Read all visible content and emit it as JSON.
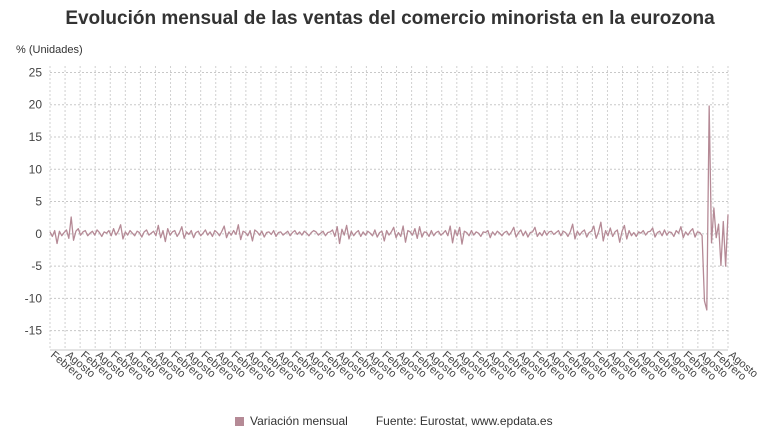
{
  "chart_data": {
    "type": "line",
    "title": "Evolución mensual de las ventas del comercio minorista en la eurozona",
    "ylabel": "% (Unidades)",
    "ylim": [
      -18,
      26
    ],
    "y_ticks": [
      25,
      20,
      15,
      10,
      5,
      0,
      -5,
      -10,
      -15
    ],
    "x_tick_labels": [
      "Febrero",
      "Agosto",
      "Febrero",
      "Agosto",
      "Febrero",
      "Agosto",
      "Febrero",
      "Agosto",
      "Febrero",
      "Agosto",
      "Febrero",
      "Agosto",
      "Febrero",
      "Agosto",
      "Febrero",
      "Agosto",
      "Febrero",
      "Agosto",
      "Febrero",
      "Agosto",
      "Febrero",
      "Agosto",
      "Febrero",
      "Agosto",
      "Febrero",
      "Agosto",
      "Febrero",
      "Agosto",
      "Febrero",
      "Agosto",
      "Febrero",
      "Agosto",
      "Febrero",
      "Agosto",
      "Febrero",
      "Agosto",
      "Febrero",
      "Agosto",
      "Febrero",
      "Agosto",
      "Febrero",
      "Agosto",
      "Febrero",
      "Agosto",
      "Febrero",
      "Agosto"
    ],
    "grid": true,
    "legend_position": "bottom",
    "series": [
      {
        "name": "Variación mensual",
        "color": "#b58a96",
        "values": [
          0.3,
          -0.4,
          0.5,
          -1.5,
          0.4,
          -0.3,
          0.2,
          0.6,
          -0.7,
          2.6,
          -1.0,
          0.4,
          0.8,
          -0.2,
          0.3,
          0.5,
          -0.3,
          0.1,
          0.4,
          -0.2,
          0.6,
          0.2,
          -0.4,
          0.3,
          0.1,
          0.5,
          -0.3,
          0.8,
          -0.2,
          0.4,
          1.4,
          -0.8,
          0.3,
          -0.2,
          0.5,
          0.1,
          -0.3,
          0.4,
          0.2,
          -0.5,
          0.3,
          0.6,
          -0.2,
          0.1,
          0.4,
          -0.3,
          1.3,
          -0.6,
          0.5,
          -1.2,
          0.8,
          -0.2,
          0.3,
          0.5,
          -0.4,
          0.2,
          1.1,
          -0.7,
          0.3,
          -0.1,
          0.5,
          -0.6,
          0.2,
          0.4,
          -0.3,
          0.1,
          0.6,
          -0.2,
          0.3,
          -0.4,
          0.5,
          0.2,
          -0.3,
          0.4,
          1.2,
          -0.6,
          0.3,
          -0.2,
          0.5,
          -0.1,
          1.4,
          -0.9,
          0.4,
          0.2,
          -0.3,
          0.5,
          -1.1,
          0.6,
          0.3,
          -0.2,
          0.4,
          -0.5,
          0.2,
          0.3,
          -0.1,
          0.5,
          -0.4,
          0.2,
          0.3,
          -0.2,
          0.1,
          0.4,
          -0.3,
          0.2,
          0.5,
          -0.1,
          0.3,
          -0.2,
          0.4,
          0.1,
          -0.3,
          0.2,
          0.5,
          0.3,
          -0.2,
          0.1,
          0.4,
          -0.3,
          0.2,
          0.3,
          0.6,
          -0.4,
          1.1,
          -1.5,
          0.7,
          -0.2,
          1.3,
          -0.8,
          0.4,
          -0.3,
          0.2,
          0.5,
          -0.4,
          0.3,
          -0.2,
          0.4,
          0.1,
          -0.3,
          0.6,
          -0.5,
          0.2,
          0.4,
          -1.1,
          0.5,
          -0.2,
          0.3,
          1.0,
          -0.6,
          0.2,
          -0.4,
          1.2,
          -1.3,
          0.5,
          0.3,
          -0.2,
          0.8,
          -0.7,
          1.1,
          -0.5,
          0.3,
          0.2,
          -0.4,
          0.5,
          -0.3,
          0.2,
          0.4,
          -0.2,
          0.1,
          0.5,
          -0.3,
          1.2,
          -1.4,
          0.6,
          -0.3,
          1.0,
          -1.6,
          0.4,
          0.2,
          -0.3,
          0.5,
          -0.2,
          0.3,
          0.1,
          -0.4,
          0.3,
          0.2,
          0.5,
          -0.6,
          0.3,
          -0.2,
          0.4,
          0.1,
          -0.3,
          0.2,
          0.4,
          -0.2,
          0.3,
          1.0,
          -0.5,
          0.2,
          0.6,
          -0.3,
          0.4,
          -0.5,
          0.2,
          0.3,
          1.0,
          -0.4,
          0.2,
          -0.3,
          0.5,
          -0.2,
          0.3,
          0.4,
          -0.1,
          0.2,
          0.5,
          -0.3,
          0.4,
          0.2,
          -0.4,
          0.3,
          1.5,
          -0.8,
          0.4,
          -0.2,
          0.3,
          0.6,
          -0.5,
          0.2,
          0.4,
          1.2,
          -0.7,
          0.3,
          1.8,
          -1.1,
          0.5,
          -0.3,
          0.9,
          -0.4,
          0.3,
          0.6,
          -1.3,
          0.4,
          1.3,
          -0.8,
          0.5,
          -0.3,
          0.2,
          -0.4,
          0.3,
          0.1,
          0.5,
          -0.2,
          0.3,
          0.4,
          0.9,
          -0.5,
          0.2,
          0.4,
          -0.3,
          0.6,
          -0.2,
          0.3,
          0.2,
          -0.4,
          0.5,
          0.1,
          1.1,
          -0.6,
          0.3,
          -0.2,
          0.4,
          0.8,
          -0.5,
          0.3,
          0.2,
          -0.3,
          -10.4,
          -11.8,
          19.8,
          -1.4,
          4.0,
          -0.6,
          1.5,
          -4.9,
          1.9,
          -5.0,
          3.0
        ]
      }
    ]
  },
  "legend": {
    "series_label": "Variación mensual",
    "source": "Fuente: Eurostat, www.epdata.es"
  }
}
